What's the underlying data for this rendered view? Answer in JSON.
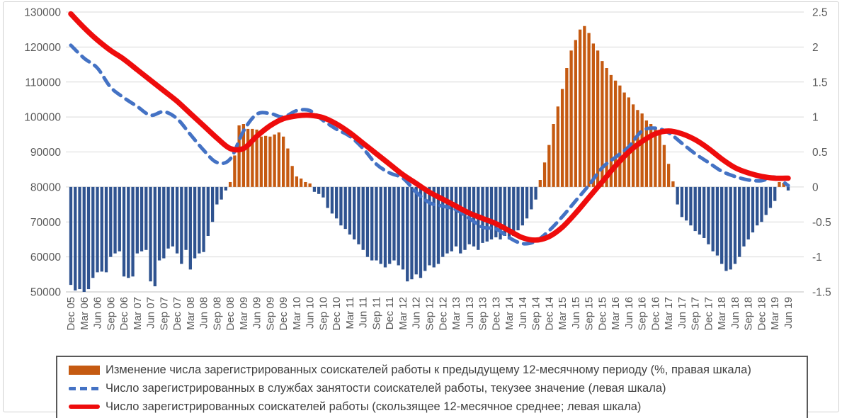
{
  "chart_data": {
    "type": "combo-bar-line",
    "x_labels": [
      "Dec 05",
      "Mar 06",
      "Jun 06",
      "Sep 06",
      "Dec 06",
      "Mar 07",
      "Jun 07",
      "Sep 07",
      "Dec 07",
      "Mar 08",
      "Jun 08",
      "Sep 08",
      "Dec 08",
      "Mar 09",
      "Jun 09",
      "Sep 09",
      "Dec 09",
      "Mar 10",
      "Jun 10",
      "Sep 10",
      "Dec 10",
      "Mar 11",
      "Jun 11",
      "Sep 11",
      "Dec 11",
      "Mar 12",
      "Jun 12",
      "Sep 12",
      "Dec 12",
      "Mar 13",
      "Jun 13",
      "Sep 13",
      "Dec 13",
      "Mar 14",
      "Jun 14",
      "Sep 14",
      "Dec 14",
      "Mar 15",
      "Jun 15",
      "Sep 15",
      "Dec 15",
      "Mar 16",
      "Jun 16",
      "Sep 16",
      "Dec 16",
      "Mar 17",
      "Jun 17",
      "Sep 17",
      "Dec 17",
      "Mar 18",
      "Jun 18",
      "Sep 18",
      "Dec 18",
      "Mar 19",
      "Jun 19"
    ],
    "x_label_every_n_months": 3,
    "left_axis": {
      "min": 50000,
      "max": 130000,
      "step": 10000,
      "labels": [
        "130000",
        "120000",
        "110000",
        "100000",
        "90000",
        "80000",
        "70000",
        "60000",
        "50000"
      ]
    },
    "right_axis": {
      "min": -1.5,
      "max": 2.5,
      "step": 0.5,
      "labels": [
        "2.5",
        "2",
        "1.5",
        "1",
        "0.5",
        "0",
        "-0.5",
        "-1",
        "-1.5"
      ]
    },
    "grid": true,
    "legend_position": "bottom",
    "bars_monthly": {
      "name": "Изменение числа зарегистрированных соискателей работы к предыдущему 12-месячному периоду (%, правая шкала)",
      "axis": "right",
      "start": "Dec 05",
      "positive_color": "#c55a11",
      "negative_color": "#2f5390",
      "values": [
        -1.4,
        -1.48,
        -1.46,
        -1.5,
        -1.46,
        -1.3,
        -1.22,
        -1.21,
        -1.22,
        -1.0,
        -0.95,
        -0.92,
        -1.28,
        -1.3,
        -1.28,
        -0.95,
        -0.92,
        -0.9,
        -1.35,
        -1.42,
        -1.05,
        -1.02,
        -0.88,
        -0.85,
        -0.95,
        -1.1,
        -0.9,
        -1.18,
        -1.02,
        -0.95,
        -0.93,
        -0.7,
        -0.5,
        -0.25,
        -0.18,
        -0.05,
        0.07,
        0.45,
        0.88,
        0.9,
        0.83,
        0.83,
        0.82,
        0.72,
        0.73,
        0.72,
        0.75,
        0.78,
        0.72,
        0.55,
        0.3,
        0.15,
        0.12,
        0.07,
        0.05,
        -0.07,
        -0.1,
        -0.15,
        -0.3,
        -0.38,
        -0.45,
        -0.55,
        -0.6,
        -0.68,
        -0.75,
        -0.82,
        -0.9,
        -1.0,
        -1.05,
        -1.05,
        -1.1,
        -1.15,
        -1.1,
        -1.05,
        -1.12,
        -1.18,
        -1.35,
        -1.32,
        -1.25,
        -1.3,
        -1.2,
        -1.12,
        -1.15,
        -1.1,
        -1.0,
        -0.95,
        -0.92,
        -0.85,
        -0.95,
        -0.9,
        -0.82,
        -0.85,
        -0.9,
        -0.8,
        -0.78,
        -0.75,
        -0.72,
        -0.75,
        -0.7,
        -0.75,
        -0.7,
        -0.62,
        -0.55,
        -0.45,
        -0.32,
        -0.18,
        0.1,
        0.35,
        0.6,
        0.9,
        1.15,
        1.4,
        1.7,
        1.95,
        2.1,
        2.25,
        2.3,
        2.2,
        2.05,
        1.95,
        1.8,
        1.7,
        1.6,
        1.52,
        1.45,
        1.35,
        1.28,
        1.18,
        1.1,
        1.05,
        0.95,
        0.9,
        0.85,
        0.78,
        0.6,
        0.33,
        0.08,
        -0.25,
        -0.43,
        -0.48,
        -0.55,
        -0.63,
        -0.68,
        -0.73,
        -0.82,
        -0.92,
        -0.98,
        -1.1,
        -1.2,
        -1.18,
        -1.1,
        -1.0,
        -0.85,
        -0.75,
        -0.65,
        -0.55,
        -0.5,
        -0.4,
        -0.3,
        -0.2,
        0.07,
        0.06,
        -0.05
      ]
    },
    "line_current": {
      "name": "Число зарегистрированных в службах занятости соискателей работы, текузее значение (левая шкала)",
      "axis": "left",
      "color": "#4472c4",
      "style": "dashed",
      "values_quarterly": [
        120500,
        116800,
        114000,
        108500,
        105500,
        103000,
        100500,
        101500,
        99500,
        95000,
        90500,
        87000,
        88000,
        96000,
        100800,
        101000,
        100000,
        101800,
        101800,
        99000,
        96500,
        94500,
        91000,
        86500,
        84000,
        82500,
        78500,
        75500,
        74500,
        73500,
        71000,
        68500,
        68000,
        65500,
        63800,
        64500,
        67500,
        71500,
        76000,
        80500,
        85500,
        88500,
        91500,
        96000,
        96800,
        95500,
        92500,
        89500,
        87000,
        84500,
        83000,
        82000,
        81800,
        82800,
        80400
      ]
    },
    "line_moving_avg": {
      "name": "Число зарегистрированных соискателей работы (скользящее 12-месячное среднее; левая шкала)",
      "axis": "left",
      "color": "#ee0c0c",
      "style": "solid",
      "values_quarterly": [
        129500,
        125500,
        122000,
        119000,
        116500,
        113500,
        110500,
        107500,
        104500,
        101000,
        97500,
        94000,
        91000,
        91000,
        94500,
        97500,
        99500,
        100300,
        100500,
        99800,
        98000,
        95500,
        92500,
        89500,
        86500,
        83500,
        81000,
        78500,
        76500,
        74500,
        72500,
        71000,
        69500,
        67500,
        65500,
        64800,
        65800,
        68500,
        72500,
        77000,
        81500,
        86000,
        90000,
        93000,
        95200,
        96000,
        95200,
        93500,
        91000,
        88000,
        85500,
        84000,
        83000,
        82500,
        82500
      ]
    },
    "legend": [
      {
        "label": "Изменение числа зарегистрированных соискателей работы к предыдущему 12-месячному периоду (%, правая шкала)",
        "swatch": "orange-bar"
      },
      {
        "label": "Число зарегистрированных в службах занятости соискателей работы, текузее значение (левая шкала)",
        "swatch": "blue-dashed-line"
      },
      {
        "label": "Число зарегистрированных соискателей работы (скользящее 12-месячное среднее; левая шкала)",
        "swatch": "red-solid-line"
      }
    ],
    "colors": {
      "bar_positive": "#c55a11",
      "bar_negative": "#2f5390",
      "line_current": "#4472c4",
      "line_moving_avg": "#ee0c0c",
      "gridline": "#d9d9d9",
      "axis_text": "#595959",
      "legend_text": "#404040"
    }
  }
}
